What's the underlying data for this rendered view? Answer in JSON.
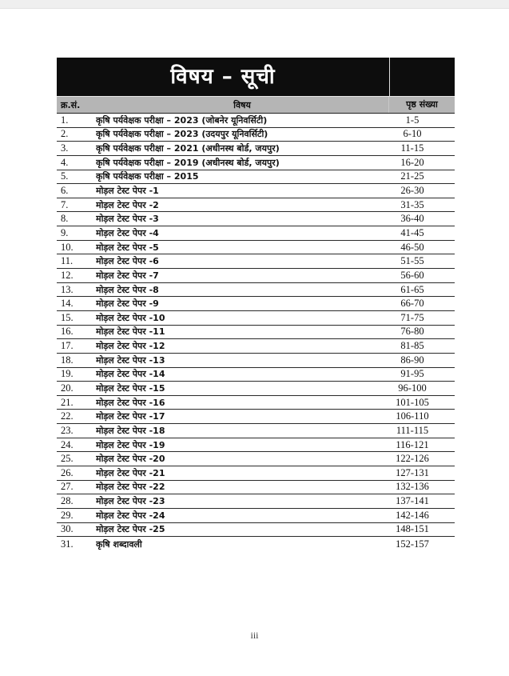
{
  "page": {
    "footer_page_number": "iii"
  },
  "toc": {
    "title": "विषय – सूची",
    "columns": {
      "sno": "क्र.सं.",
      "subject": "विषय",
      "pages": "पृष्ठ संख्या"
    },
    "rows": [
      {
        "sno": "1.",
        "subject": "कृषि पर्यवेक्षक परीक्षा – 2023 (जोबनेर यूनिवर्सिटी)",
        "pages": "1-5"
      },
      {
        "sno": "2.",
        "subject": "कृषि पर्यवेक्षक परीक्षा – 2023 (उदयपुर यूनिवर्सिटी)",
        "pages": "6-10"
      },
      {
        "sno": "3.",
        "subject": "कृषि पर्यवेक्षक परीक्षा – 2021 (अधीनस्थ बोर्ड, जयपुर)",
        "pages": "11-15"
      },
      {
        "sno": "4.",
        "subject": "कृषि पर्यवेक्षक परीक्षा – 2019 (अधीनस्थ बोर्ड, जयपुर)",
        "pages": "16-20"
      },
      {
        "sno": "5.",
        "subject": "कृषि पर्यवेक्षक परीक्षा – 2015",
        "pages": "21-25"
      },
      {
        "sno": "6.",
        "subject": "मोड़ल टेस्ट पेपर -1",
        "pages": "26-30"
      },
      {
        "sno": "7.",
        "subject": "मोड़ल टेस्ट पेपर -2",
        "pages": "31-35"
      },
      {
        "sno": "8.",
        "subject": "मोड़ल टेस्ट पेपर -3",
        "pages": "36-40"
      },
      {
        "sno": "9.",
        "subject": "मोड़ल टेस्ट पेपर -4",
        "pages": "41-45"
      },
      {
        "sno": "10.",
        "subject": "मोड़ल टेस्ट पेपर -5",
        "pages": "46-50"
      },
      {
        "sno": "11.",
        "subject": "मोड़ल टेस्ट पेपर -6",
        "pages": "51-55"
      },
      {
        "sno": "12.",
        "subject": "मोड़ल टेस्ट पेपर -7",
        "pages": "56-60"
      },
      {
        "sno": "13.",
        "subject": "मोड़ल टेस्ट पेपर -8",
        "pages": "61-65"
      },
      {
        "sno": "14.",
        "subject": "मोड़ल टेस्ट पेपर -9",
        "pages": "66-70"
      },
      {
        "sno": "15.",
        "subject": "मोड़ल टेस्ट पेपर -10",
        "pages": "71-75"
      },
      {
        "sno": "16.",
        "subject": "मोड़ल टेस्ट पेपर -11",
        "pages": "76-80"
      },
      {
        "sno": "17.",
        "subject": "मोड़ल टेस्ट पेपर -12",
        "pages": "81-85"
      },
      {
        "sno": "18.",
        "subject": "मोड़ल टेस्ट पेपर -13",
        "pages": "86-90"
      },
      {
        "sno": "19.",
        "subject": "मोड़ल टेस्ट पेपर -14",
        "pages": "91-95"
      },
      {
        "sno": "20.",
        "subject": "मोड़ल टेस्ट पेपर -15",
        "pages": "96-100"
      },
      {
        "sno": "21.",
        "subject": "मोड़ल टेस्ट पेपर -16",
        "pages": "101-105"
      },
      {
        "sno": "22.",
        "subject": "मोड़ल टेस्ट पेपर -17",
        "pages": "106-110"
      },
      {
        "sno": "23.",
        "subject": "मोड़ल टेस्ट पेपर -18",
        "pages": "111-115"
      },
      {
        "sno": "24.",
        "subject": "मोड़ल टेस्ट पेपर -19",
        "pages": "116-121"
      },
      {
        "sno": "25.",
        "subject": "मोड़ल टेस्ट पेपर -20",
        "pages": "122-126"
      },
      {
        "sno": "26.",
        "subject": "मोड़ल टेस्ट पेपर -21",
        "pages": "127-131"
      },
      {
        "sno": "27.",
        "subject": "मोड़ल टेस्ट पेपर -22",
        "pages": "132-136"
      },
      {
        "sno": "28.",
        "subject": "मोड़ल टेस्ट पेपर -23",
        "pages": "137-141"
      },
      {
        "sno": "29.",
        "subject": "मोड़ल टेस्ट पेपर -24",
        "pages": "142-146"
      },
      {
        "sno": "30.",
        "subject": "मोड़ल टेस्ट पेपर -25",
        "pages": "148-151"
      },
      {
        "sno": "31.",
        "subject": "कृषि शब्दावली",
        "pages": "152-157"
      }
    ]
  },
  "colors": {
    "title_band_bg": "#0d0d0d",
    "title_text": "#ffffff",
    "column_header_bg": "#b5b5b5",
    "row_line": "#2a2a2a"
  }
}
